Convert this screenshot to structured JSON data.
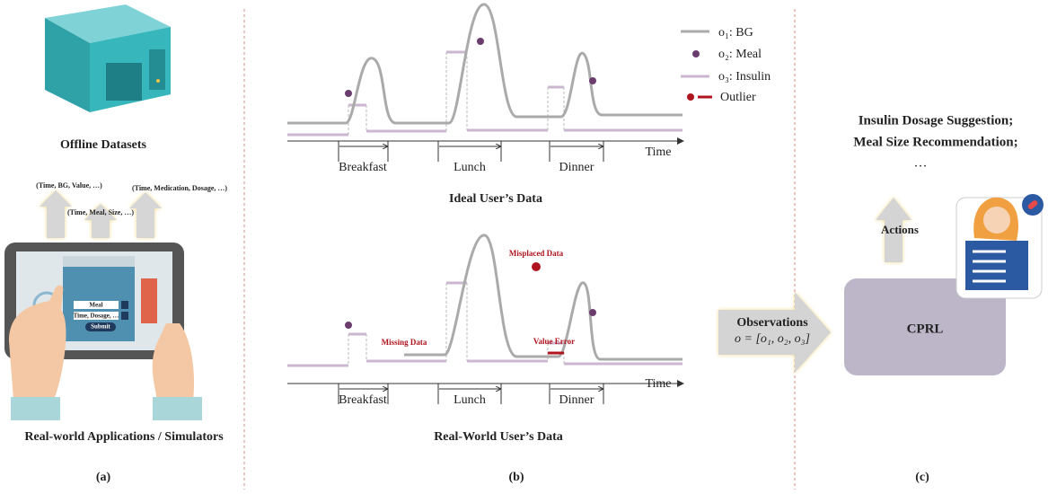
{
  "panel_a": {
    "title": "Offline Datasets",
    "tuples": [
      "(Time, BG, Value, …)",
      "(Time, Meal, Size, …)",
      "(Time, Medication, Dosage, …)"
    ],
    "app": {
      "field_1": "Meal",
      "field_2": "Time, Dosage, …",
      "button": "Submit"
    },
    "caption": "Real-world Applications / Simulators",
    "label": "(a)"
  },
  "panel_b": {
    "legend": [
      "o₁: BG",
      "o₂: Meal",
      "o₃: Insulin",
      "Outlier"
    ],
    "ideal": {
      "periods": [
        "Breakfast",
        "Lunch",
        "Dinner"
      ],
      "axis": "Time",
      "title": "Ideal User’s Data"
    },
    "real": {
      "periods": [
        "Breakfast",
        "Lunch",
        "Dinner"
      ],
      "axis": "Time",
      "title": "Real-World User’s Data",
      "annotations": [
        "Missing Data",
        "Misplaced Data",
        "Value Error"
      ]
    },
    "label": "(b)"
  },
  "panel_c": {
    "outputs": [
      "Insulin Dosage Suggestion;",
      "Meal Size Recommendation;",
      "…"
    ],
    "actions": "Actions",
    "observations": "Observations",
    "formula": "o = [o₁, o₂, o₃]",
    "agent": "CPRL",
    "label": "(c)"
  }
}
